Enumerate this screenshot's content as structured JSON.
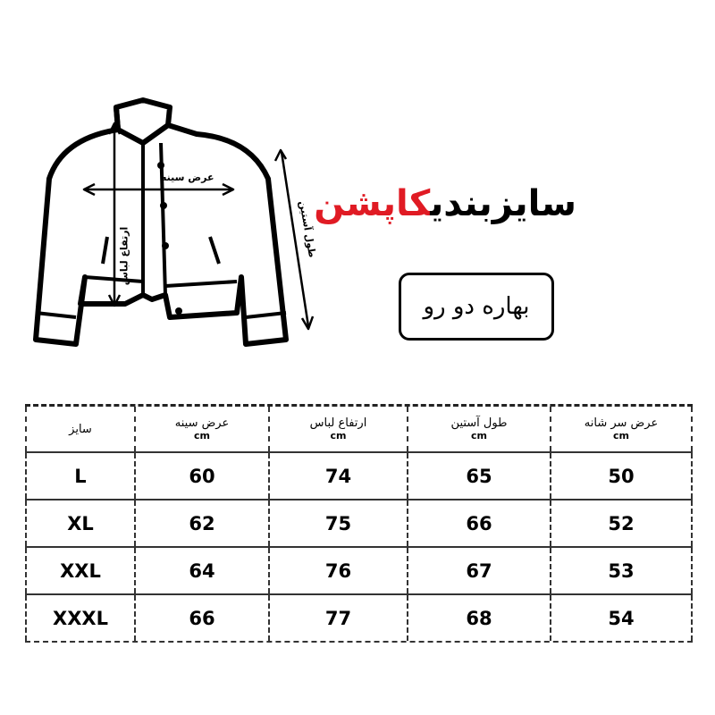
{
  "title": {
    "main": "سایزبندی",
    "accent": "کاپشن",
    "accent_color": "#e01b24"
  },
  "subtitle": "بهاره دو رو",
  "jacket_labels": {
    "chest": "عرض سینه",
    "height": "ارتفاع لباس",
    "sleeve": "طول آستین"
  },
  "table": {
    "headers": [
      {
        "label": "سایز",
        "unit": ""
      },
      {
        "label": "عرض سینه",
        "unit": "cm"
      },
      {
        "label": "ارتفاع لباس",
        "unit": "cm"
      },
      {
        "label": "طول آستین",
        "unit": "cm"
      },
      {
        "label": "عرض سر شانه",
        "unit": "cm"
      }
    ],
    "rows": [
      [
        "L",
        "60",
        "74",
        "65",
        "50"
      ],
      [
        "XL",
        "62",
        "75",
        "66",
        "52"
      ],
      [
        "XXL",
        "64",
        "76",
        "67",
        "53"
      ],
      [
        "XXXL",
        "66",
        "77",
        "68",
        "54"
      ]
    ]
  }
}
